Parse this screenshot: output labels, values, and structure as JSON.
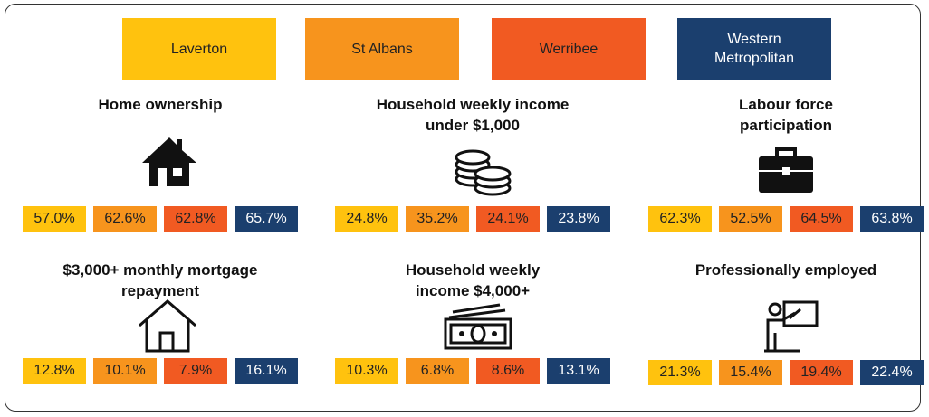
{
  "legend": [
    {
      "name": "Laverton",
      "color": "#FFC20E",
      "text_color": "#222222"
    },
    {
      "name": "St Albans",
      "color": "#F7941D",
      "text_color": "#222222"
    },
    {
      "name": "Werribee",
      "color": "#F15A22",
      "text_color": "#222222"
    },
    {
      "name": "Western Metropolitan",
      "color": "#1B3F6E",
      "text_color": "#FFFFFF"
    }
  ],
  "panels": [
    {
      "title": "Home ownership",
      "values": [
        "57.0%",
        "62.6%",
        "62.8%",
        "65.7%"
      ]
    },
    {
      "title": "Household weekly income under $1,000",
      "values": [
        "24.8%",
        "35.2%",
        "24.1%",
        "23.8%"
      ]
    },
    {
      "title": "Labour force participation",
      "values": [
        "62.3%",
        "52.5%",
        "64.5%",
        "63.8%"
      ]
    },
    {
      "title": "$3,000+ monthly mortgage repayment",
      "values": [
        "12.8%",
        "10.1%",
        "7.9%",
        "16.1%"
      ]
    },
    {
      "title": "Household weekly income $4,000+",
      "values": [
        "10.3%",
        "6.8%",
        "8.6%",
        "13.1%"
      ]
    },
    {
      "title": "Professionally employed",
      "values": [
        "21.3%",
        "15.4%",
        "19.4%",
        "22.4%"
      ]
    }
  ]
}
